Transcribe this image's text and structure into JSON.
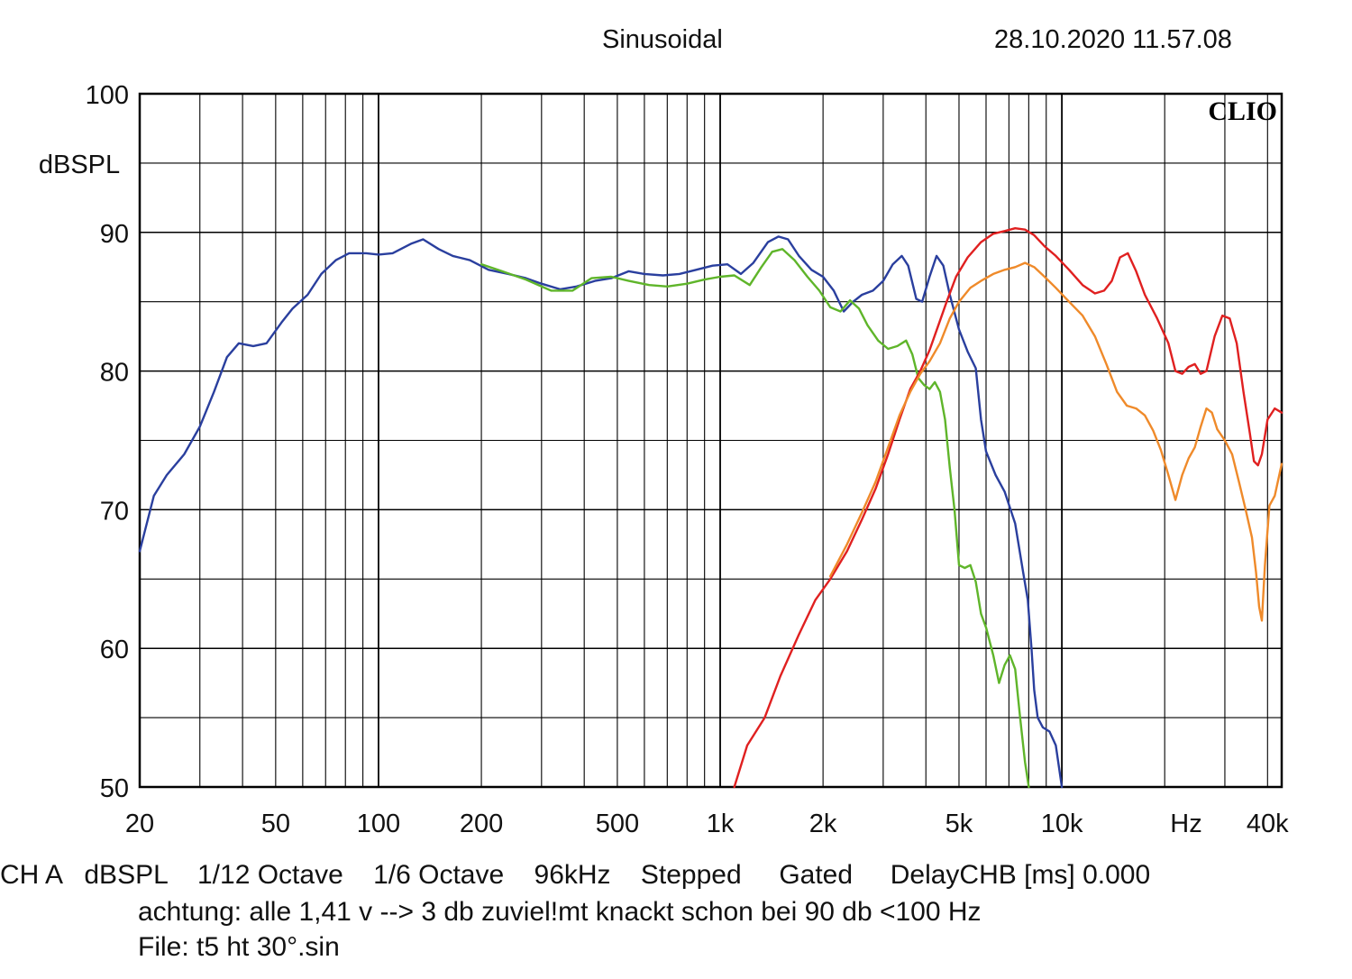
{
  "header": {
    "title": "Sinusoidal",
    "timestamp": "28.10.2020 11.57.08"
  },
  "footer": {
    "status_line": "CH A   dBSPL    1/12 Octave    1/6 Octave    96kHz    Stepped     Gated     DelayCHB [ms] 0.000",
    "note_line": "achtung: alle 1,41 v --> 3 db zuviel!mt knackt schon bei 90 db <100 Hz",
    "file_line": "File: t5 ht 30°.sin"
  },
  "chart_data": {
    "type": "line",
    "title": "Sinusoidal",
    "watermark": "CLIO",
    "ylabel": "dBSPL",
    "xlabel": "Hz",
    "x_scale": "log",
    "xlim": [
      20,
      44000
    ],
    "ylim": [
      50,
      100
    ],
    "grid": true,
    "y_ticks": [
      {
        "value": 100,
        "label": "100"
      },
      {
        "value": 90,
        "label": "90"
      },
      {
        "value": 80,
        "label": "80"
      },
      {
        "value": 70,
        "label": "70"
      },
      {
        "value": 60,
        "label": "60"
      },
      {
        "value": 50,
        "label": "50"
      }
    ],
    "x_ticks": [
      {
        "value": 20,
        "label": "20"
      },
      {
        "value": 50,
        "label": "50"
      },
      {
        "value": 100,
        "label": "100"
      },
      {
        "value": 200,
        "label": "200"
      },
      {
        "value": 500,
        "label": "500"
      },
      {
        "value": 1000,
        "label": "1k"
      },
      {
        "value": 2000,
        "label": "2k"
      },
      {
        "value": 5000,
        "label": "5k"
      },
      {
        "value": 10000,
        "label": "10k"
      },
      {
        "value": 40000,
        "label": "40k"
      }
    ],
    "series": [
      {
        "color": "#2a3f9e",
        "points": [
          [
            20,
            67
          ],
          [
            22,
            71
          ],
          [
            24,
            72.5
          ],
          [
            27,
            74
          ],
          [
            30,
            76
          ],
          [
            33,
            78.5
          ],
          [
            36,
            81
          ],
          [
            39,
            82
          ],
          [
            43,
            81.8
          ],
          [
            47,
            82
          ],
          [
            52,
            83.5
          ],
          [
            56,
            84.5
          ],
          [
            62,
            85.5
          ],
          [
            68,
            87
          ],
          [
            75,
            88
          ],
          [
            82,
            88.5
          ],
          [
            92,
            88.5
          ],
          [
            100,
            88.4
          ],
          [
            110,
            88.5
          ],
          [
            125,
            89.2
          ],
          [
            135,
            89.5
          ],
          [
            150,
            88.8
          ],
          [
            165,
            88.3
          ],
          [
            185,
            88
          ],
          [
            210,
            87.3
          ],
          [
            240,
            87
          ],
          [
            270,
            86.7
          ],
          [
            300,
            86.3
          ],
          [
            340,
            85.9
          ],
          [
            380,
            86.1
          ],
          [
            430,
            86.5
          ],
          [
            480,
            86.7
          ],
          [
            540,
            87.2
          ],
          [
            600,
            87
          ],
          [
            680,
            86.9
          ],
          [
            760,
            87
          ],
          [
            850,
            87.3
          ],
          [
            950,
            87.6
          ],
          [
            1050,
            87.7
          ],
          [
            1150,
            87
          ],
          [
            1250,
            87.8
          ],
          [
            1380,
            89.3
          ],
          [
            1480,
            89.7
          ],
          [
            1580,
            89.5
          ],
          [
            1700,
            88.3
          ],
          [
            1850,
            87.3
          ],
          [
            2000,
            86.8
          ],
          [
            2150,
            85.8
          ],
          [
            2300,
            84.3
          ],
          [
            2450,
            85
          ],
          [
            2600,
            85.5
          ],
          [
            2800,
            85.8
          ],
          [
            3000,
            86.5
          ],
          [
            3200,
            87.7
          ],
          [
            3400,
            88.3
          ],
          [
            3550,
            87.6
          ],
          [
            3750,
            85.2
          ],
          [
            3900,
            85
          ],
          [
            4100,
            86.8
          ],
          [
            4300,
            88.3
          ],
          [
            4500,
            87.6
          ],
          [
            4700,
            85.5
          ],
          [
            5000,
            83
          ],
          [
            5300,
            81.4
          ],
          [
            5600,
            80.2
          ],
          [
            5800,
            76.5
          ],
          [
            6000,
            74.2
          ],
          [
            6400,
            72.5
          ],
          [
            6800,
            71.3
          ],
          [
            7300,
            69
          ],
          [
            7700,
            65.5
          ],
          [
            7950,
            63.5
          ],
          [
            8150,
            60
          ],
          [
            8300,
            57
          ],
          [
            8500,
            55
          ],
          [
            8800,
            54.3
          ],
          [
            9200,
            54
          ],
          [
            9600,
            53
          ],
          [
            10000,
            50
          ]
        ]
      },
      {
        "color": "#5fb52a",
        "points": [
          [
            200,
            87.7
          ],
          [
            230,
            87.2
          ],
          [
            270,
            86.6
          ],
          [
            320,
            85.8
          ],
          [
            370,
            85.8
          ],
          [
            420,
            86.7
          ],
          [
            480,
            86.8
          ],
          [
            540,
            86.5
          ],
          [
            620,
            86.2
          ],
          [
            700,
            86.1
          ],
          [
            800,
            86.3
          ],
          [
            900,
            86.6
          ],
          [
            1000,
            86.8
          ],
          [
            1100,
            86.9
          ],
          [
            1220,
            86.2
          ],
          [
            1320,
            87.5
          ],
          [
            1420,
            88.6
          ],
          [
            1520,
            88.8
          ],
          [
            1650,
            88
          ],
          [
            1800,
            86.8
          ],
          [
            1950,
            85.8
          ],
          [
            2100,
            84.6
          ],
          [
            2250,
            84.3
          ],
          [
            2400,
            85.1
          ],
          [
            2550,
            84.5
          ],
          [
            2700,
            83.3
          ],
          [
            2900,
            82.2
          ],
          [
            3100,
            81.6
          ],
          [
            3300,
            81.8
          ],
          [
            3500,
            82.2
          ],
          [
            3650,
            81.2
          ],
          [
            3800,
            79.5
          ],
          [
            3950,
            79
          ],
          [
            4100,
            78.7
          ],
          [
            4250,
            79.2
          ],
          [
            4400,
            78.5
          ],
          [
            4550,
            76.5
          ],
          [
            4700,
            73
          ],
          [
            4850,
            70
          ],
          [
            5000,
            66
          ],
          [
            5200,
            65.8
          ],
          [
            5400,
            66
          ],
          [
            5600,
            64.8
          ],
          [
            5800,
            62.5
          ],
          [
            6000,
            61.5
          ],
          [
            6300,
            59.5
          ],
          [
            6550,
            57.5
          ],
          [
            6800,
            58.8
          ],
          [
            7050,
            59.5
          ],
          [
            7300,
            58.5
          ],
          [
            7550,
            55
          ],
          [
            7800,
            51.8
          ],
          [
            8000,
            50
          ]
        ]
      },
      {
        "color": "#e02020",
        "points": [
          [
            1100,
            50
          ],
          [
            1200,
            53
          ],
          [
            1350,
            55
          ],
          [
            1500,
            58
          ],
          [
            1700,
            61
          ],
          [
            1900,
            63.5
          ],
          [
            2100,
            65
          ],
          [
            2350,
            67
          ],
          [
            2600,
            69.3
          ],
          [
            2850,
            71.5
          ],
          [
            3100,
            74
          ],
          [
            3350,
            76.5
          ],
          [
            3600,
            78.7
          ],
          [
            3850,
            80
          ],
          [
            4100,
            81.5
          ],
          [
            4350,
            83.3
          ],
          [
            4600,
            85
          ],
          [
            4900,
            86.8
          ],
          [
            5300,
            88.2
          ],
          [
            5800,
            89.3
          ],
          [
            6300,
            89.9
          ],
          [
            6800,
            90.1
          ],
          [
            7300,
            90.3
          ],
          [
            7800,
            90.2
          ],
          [
            8300,
            89.8
          ],
          [
            8900,
            89
          ],
          [
            9600,
            88.3
          ],
          [
            10500,
            87.3
          ],
          [
            11500,
            86.2
          ],
          [
            12500,
            85.6
          ],
          [
            13300,
            85.8
          ],
          [
            14000,
            86.5
          ],
          [
            14800,
            88.2
          ],
          [
            15600,
            88.5
          ],
          [
            16500,
            87.2
          ],
          [
            17500,
            85.5
          ],
          [
            19000,
            83.8
          ],
          [
            20500,
            82
          ],
          [
            21500,
            80
          ],
          [
            22500,
            79.8
          ],
          [
            23500,
            80.3
          ],
          [
            24500,
            80.5
          ],
          [
            25500,
            79.8
          ],
          [
            26500,
            80
          ],
          [
            28000,
            82.5
          ],
          [
            29500,
            84
          ],
          [
            31000,
            83.8
          ],
          [
            32500,
            82
          ],
          [
            34000,
            78.5
          ],
          [
            35500,
            75.5
          ],
          [
            36500,
            73.5
          ],
          [
            37500,
            73.2
          ],
          [
            38500,
            74
          ],
          [
            40000,
            76.5
          ],
          [
            42000,
            77.3
          ],
          [
            44000,
            77
          ]
        ]
      },
      {
        "color": "#ef8a2a",
        "points": [
          [
            2100,
            65.2
          ],
          [
            2350,
            67.5
          ],
          [
            2600,
            69.8
          ],
          [
            2850,
            72
          ],
          [
            3100,
            74.5
          ],
          [
            3350,
            76.8
          ],
          [
            3600,
            78.5
          ],
          [
            3850,
            79.8
          ],
          [
            4100,
            80.7
          ],
          [
            4400,
            82
          ],
          [
            4700,
            83.8
          ],
          [
            5000,
            85
          ],
          [
            5400,
            86
          ],
          [
            5800,
            86.5
          ],
          [
            6300,
            87
          ],
          [
            6800,
            87.3
          ],
          [
            7300,
            87.5
          ],
          [
            7800,
            87.8
          ],
          [
            8300,
            87.5
          ],
          [
            8900,
            86.8
          ],
          [
            9600,
            86
          ],
          [
            10500,
            85
          ],
          [
            11500,
            84
          ],
          [
            12500,
            82.5
          ],
          [
            13500,
            80.5
          ],
          [
            14500,
            78.5
          ],
          [
            15500,
            77.5
          ],
          [
            16500,
            77.3
          ],
          [
            17500,
            76.8
          ],
          [
            18500,
            75.7
          ],
          [
            19500,
            74.3
          ],
          [
            20500,
            72.5
          ],
          [
            21500,
            70.7
          ],
          [
            22500,
            72.5
          ],
          [
            23500,
            73.7
          ],
          [
            24500,
            74.5
          ],
          [
            25500,
            76
          ],
          [
            26500,
            77.3
          ],
          [
            27500,
            77
          ],
          [
            28500,
            75.8
          ],
          [
            30000,
            75
          ],
          [
            31500,
            74
          ],
          [
            33000,
            72
          ],
          [
            34500,
            70
          ],
          [
            36000,
            68
          ],
          [
            37000,
            65.5
          ],
          [
            37800,
            63
          ],
          [
            38500,
            62
          ],
          [
            39300,
            66
          ],
          [
            40500,
            70.3
          ],
          [
            42000,
            71
          ],
          [
            44000,
            73.3
          ]
        ]
      }
    ]
  }
}
